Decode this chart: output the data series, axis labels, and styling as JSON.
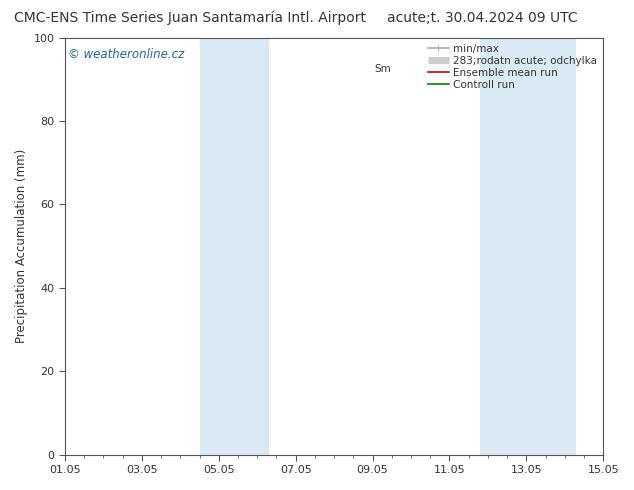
{
  "title_left": "CMC-ENS Time Series Juan Santamaría Intl. Airport",
  "title_right": "acute;t. 30.04.2024 09 UTC",
  "ylabel": "Precipitation Accumulation (mm)",
  "watermark": "© weatheronline.cz",
  "ylim": [
    0,
    100
  ],
  "yticks": [
    0,
    20,
    40,
    60,
    80,
    100
  ],
  "xtick_labels": [
    "01.05",
    "03.05",
    "05.05",
    "07.05",
    "09.05",
    "11.05",
    "13.05",
    "15.05"
  ],
  "xtick_positions": [
    0,
    2,
    4,
    6,
    8,
    10,
    12,
    14
  ],
  "xlim": [
    0,
    14
  ],
  "shaded_bands": [
    {
      "x_start": 3.5,
      "x_end": 5.3,
      "color": "#daeaf5"
    },
    {
      "x_start": 10.8,
      "x_end": 11.8,
      "color": "#daeaf5"
    },
    {
      "x_start": 11.8,
      "x_end": 13.3,
      "color": "#daeaf5"
    }
  ],
  "legend_entries": [
    {
      "label": "min/max",
      "color": "#aaaaaa",
      "lw": 1.2
    },
    {
      "label": "283;rodatn acute; odchylka",
      "color": "#cccccc",
      "lw": 5
    },
    {
      "label": "Ensemble mean run",
      "color": "#dd0000",
      "lw": 1.2
    },
    {
      "label": "Controll run",
      "color": "#008800",
      "lw": 1.2
    }
  ],
  "legend_prefix_text": "Sm",
  "background_color": "#ffffff",
  "plot_bg_color": "#ffffff",
  "border_color": "#555555",
  "title_fontsize": 10,
  "label_fontsize": 8.5,
  "tick_fontsize": 8,
  "watermark_color": "#1a6699",
  "watermark_fontsize": 8.5,
  "legend_fontsize": 7.5
}
